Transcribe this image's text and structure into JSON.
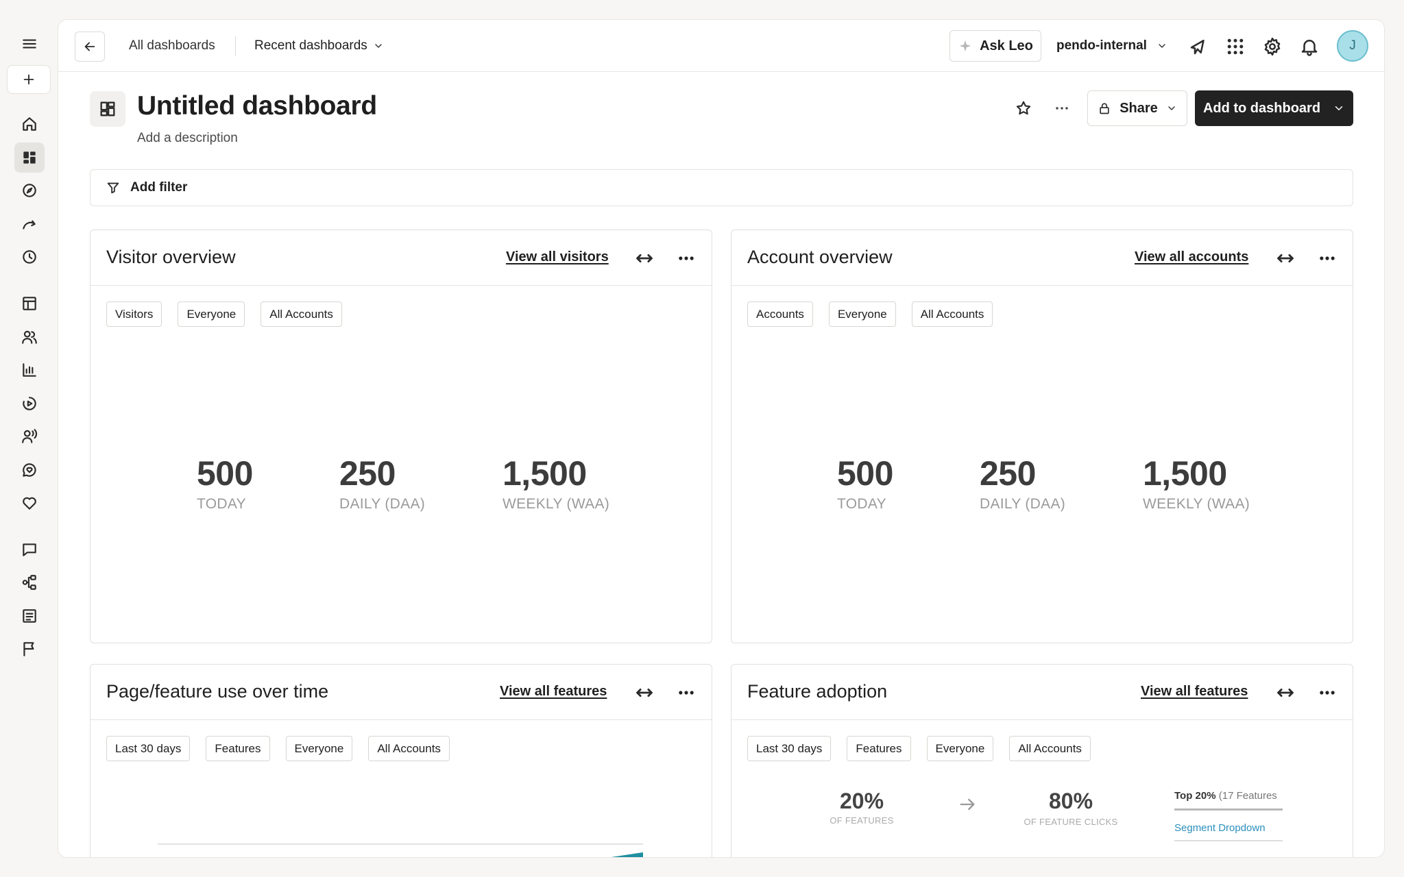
{
  "topbar": {
    "all_dashboards": "All dashboards",
    "recent_dashboards": "Recent dashboards",
    "ask_leo": "Ask Leo",
    "org": "pendo-internal",
    "avatar_initial": "J"
  },
  "header": {
    "title": "Untitled dashboard",
    "description": "Add a description",
    "share": "Share",
    "add_to_dashboard": "Add to dashboard"
  },
  "filter": {
    "label": "Add filter"
  },
  "cards": {
    "visitor": {
      "title": "Visitor overview",
      "link": "View all visitors",
      "chips": [
        "Visitors",
        "Everyone",
        "All Accounts"
      ],
      "metrics": [
        {
          "value": "500",
          "label": "TODAY"
        },
        {
          "value": "250",
          "label": "DAILY (DAA)"
        },
        {
          "value": "1,500",
          "label": "WEEKLY (WAA)"
        }
      ]
    },
    "account": {
      "title": "Account overview",
      "link": "View all accounts",
      "chips": [
        "Accounts",
        "Everyone",
        "All Accounts"
      ],
      "metrics": [
        {
          "value": "500",
          "label": "TODAY"
        },
        {
          "value": "250",
          "label": "DAILY (DAA)"
        },
        {
          "value": "1,500",
          "label": "WEEKLY (WAA)"
        }
      ]
    },
    "usage": {
      "title": "Page/feature use over time",
      "link": "View all features",
      "chips": [
        "Last 30 days",
        "Features",
        "Everyone",
        "All Accounts"
      ]
    },
    "adoption": {
      "title": "Feature adoption",
      "link": "View all features",
      "chips": [
        "Last 30 days",
        "Features",
        "Everyone",
        "All Accounts"
      ],
      "left_pct": "20%",
      "left_sub": "OF FEATURES",
      "right_pct": "80%",
      "right_sub": "OF FEATURE CLICKS",
      "top_label": "Top 20%",
      "top_count": "(17 Features",
      "top_item": "Segment Dropdown"
    }
  },
  "colors": {
    "accent_teal": "#1f8fa0",
    "primary_button": "#222222",
    "avatar_bg": "#a9dfe8"
  }
}
